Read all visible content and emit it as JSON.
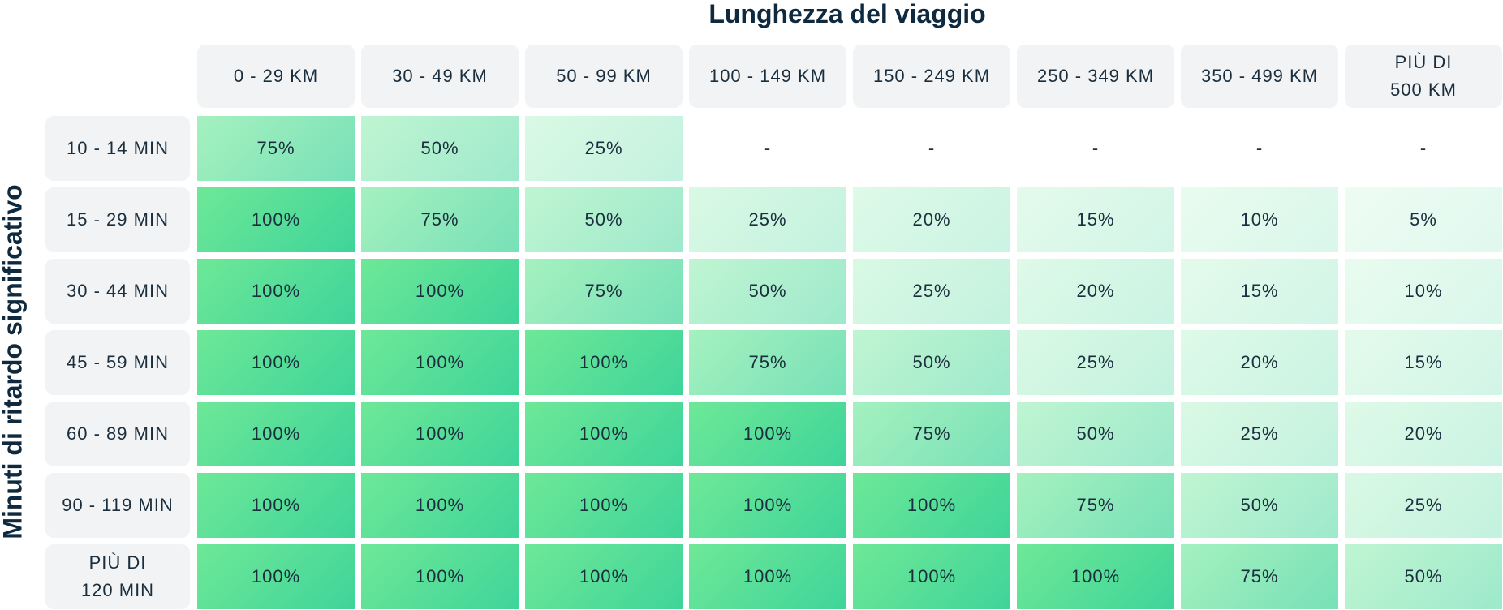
{
  "chart_data": {
    "type": "table",
    "title": "Lunghezza del viaggio",
    "row_axis_label": "Minuti di ritardo significativo",
    "columns": [
      "0 - 29 KM",
      "30 - 49 KM",
      "50 - 99 KM",
      "100 - 149 KM",
      "150 - 249 KM",
      "250 - 349 KM",
      "350 - 499 KM",
      "PIÙ DI\n500 KM"
    ],
    "rows": [
      {
        "label": "10 - 14 MIN",
        "values": [
          "75%",
          "50%",
          "25%",
          "-",
          "-",
          "-",
          "-",
          "-"
        ]
      },
      {
        "label": "15 - 29 MIN",
        "values": [
          "100%",
          "75%",
          "50%",
          "25%",
          "20%",
          "15%",
          "10%",
          "5%"
        ]
      },
      {
        "label": "30 - 44 MIN",
        "values": [
          "100%",
          "100%",
          "75%",
          "50%",
          "25%",
          "20%",
          "15%",
          "10%"
        ]
      },
      {
        "label": "45 - 59 MIN",
        "values": [
          "100%",
          "100%",
          "100%",
          "75%",
          "50%",
          "25%",
          "20%",
          "15%"
        ]
      },
      {
        "label": "60 - 89 MIN",
        "values": [
          "100%",
          "100%",
          "100%",
          "100%",
          "75%",
          "50%",
          "25%",
          "20%"
        ]
      },
      {
        "label": "90 - 119 MIN",
        "values": [
          "100%",
          "100%",
          "100%",
          "100%",
          "100%",
          "75%",
          "50%",
          "25%"
        ]
      },
      {
        "label": "PIÙ DI\n120 MIN",
        "values": [
          "100%",
          "100%",
          "100%",
          "100%",
          "100%",
          "100%",
          "75%",
          "50%"
        ]
      }
    ]
  },
  "colors": {
    "header_bg": "#f1f3f5",
    "text": "#1b2e3d",
    "title": "#0f2a3f",
    "cell_green_light": "#6ee897",
    "cell_green_dark": "#3fd49a"
  }
}
